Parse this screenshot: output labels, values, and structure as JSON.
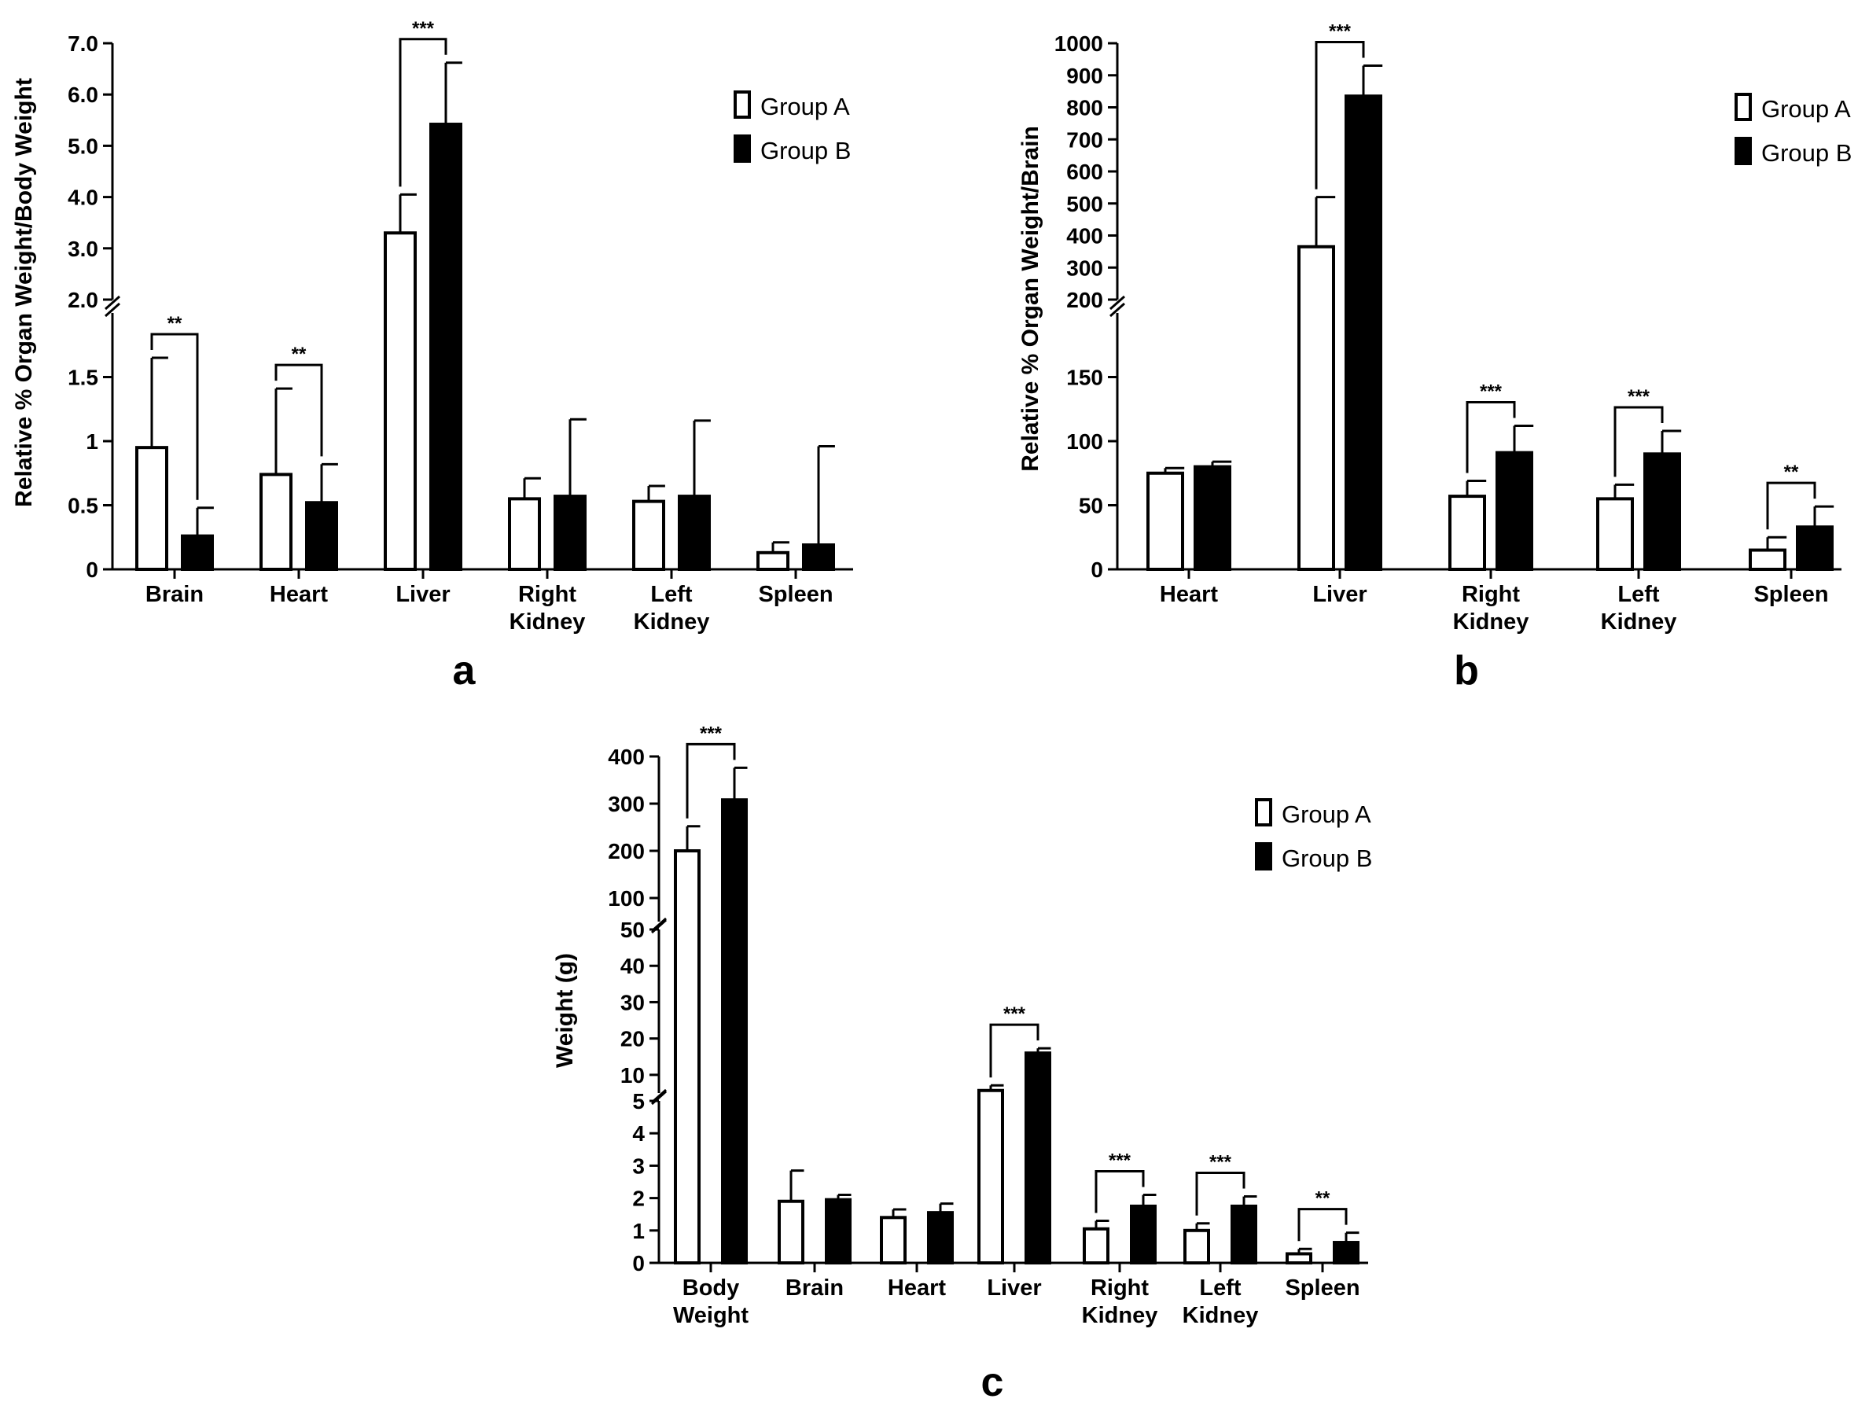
{
  "legend": {
    "group_a": "Group A",
    "group_b": "Group B"
  },
  "colors": {
    "group_a_fill": "#ffffff",
    "group_b_fill": "#000000",
    "stroke": "#000000"
  },
  "chart_data": [
    {
      "panel": "a",
      "type": "bar",
      "ylabel": "Relative % Organ Weight/Body Weight",
      "categories": [
        [
          "Brain"
        ],
        [
          "Heart"
        ],
        [
          "Liver"
        ],
        [
          "Right",
          "Kidney"
        ],
        [
          "Left",
          "Kidney"
        ],
        [
          "Spleen"
        ]
      ],
      "series": [
        {
          "name": "Group A",
          "values": [
            0.95,
            0.74,
            3.3,
            0.55,
            0.53,
            0.13
          ],
          "errors": [
            0.7,
            0.67,
            0.75,
            0.16,
            0.12,
            0.08
          ]
        },
        {
          "name": "Group B",
          "values": [
            0.26,
            0.52,
            5.42,
            0.57,
            0.57,
            0.19
          ],
          "errors": [
            0.22,
            0.3,
            1.2,
            0.6,
            0.59,
            0.77
          ]
        }
      ],
      "y_axis_broken": true,
      "lower_segment": {
        "ylim": [
          0,
          2
        ],
        "ticks": [
          "0",
          "0.5",
          "1",
          "1.5"
        ]
      },
      "upper_segment": {
        "ylim": [
          2,
          7
        ],
        "ticks": [
          "2.0",
          "3.0",
          "4.0",
          "5.0",
          "6.0",
          "7.0"
        ]
      },
      "significance": [
        {
          "category": "Brain",
          "label": "**"
        },
        {
          "category": "Heart",
          "label": "**"
        },
        {
          "category": "Liver",
          "label": "***"
        }
      ],
      "legend_placement": "top-right"
    },
    {
      "panel": "b",
      "type": "bar",
      "ylabel": "Relative % Organ Weight/Brain",
      "categories": [
        [
          "Heart"
        ],
        [
          "Liver"
        ],
        [
          "Right",
          "Kidney"
        ],
        [
          "Left",
          "Kidney"
        ],
        [
          "Spleen"
        ]
      ],
      "series": [
        {
          "name": "Group A",
          "values": [
            75,
            365,
            57,
            55,
            15
          ],
          "errors": [
            4,
            155,
            12,
            11,
            10
          ]
        },
        {
          "name": "Group B",
          "values": [
            80,
            835,
            91,
            90,
            33
          ],
          "errors": [
            4,
            95,
            21,
            18,
            16
          ]
        }
      ],
      "y_axis_broken": true,
      "lower_segment": {
        "ylim": [
          0,
          200
        ],
        "ticks": [
          "0",
          "50",
          "100",
          "150"
        ]
      },
      "upper_segment": {
        "ylim": [
          200,
          1000
        ],
        "ticks": [
          "200",
          "300",
          "400",
          "500",
          "600",
          "700",
          "800",
          "900",
          "1000"
        ]
      },
      "significance": [
        {
          "category": "Liver",
          "label": "***"
        },
        {
          "category": "Right Kidney",
          "label": "***"
        },
        {
          "category": "Left Kidney",
          "label": "***"
        },
        {
          "category": "Spleen",
          "label": "**"
        }
      ],
      "legend_placement": "top-right"
    },
    {
      "panel": "c",
      "type": "bar",
      "ylabel": "Weight (g)",
      "categories": [
        [
          "Body",
          "Weight"
        ],
        [
          "Brain"
        ],
        [
          "Heart"
        ],
        [
          "Liver"
        ],
        [
          "Right",
          "Kidney"
        ],
        [
          "Left",
          "Kidney"
        ],
        [
          "Spleen"
        ]
      ],
      "series": [
        {
          "name": "Group A",
          "values": [
            200,
            1.9,
            1.4,
            5.7,
            1.05,
            1.0,
            0.28
          ],
          "errors": [
            52,
            0.95,
            0.25,
            1.4,
            0.25,
            0.22,
            0.15
          ]
        },
        {
          "name": "Group B",
          "values": [
            308,
            1.95,
            1.55,
            16,
            1.75,
            1.75,
            0.63
          ],
          "errors": [
            68,
            0.15,
            0.28,
            1.3,
            0.35,
            0.3,
            0.3
          ]
        }
      ],
      "y_axis_broken": true,
      "lower_segment": {
        "ylim": [
          0,
          5
        ],
        "ticks": [
          "0",
          "1",
          "2",
          "3",
          "4",
          "5"
        ]
      },
      "middle_segment": {
        "ylim": [
          5,
          50
        ],
        "ticks": [
          "10",
          "20",
          "30",
          "40",
          "50"
        ]
      },
      "upper_segment": {
        "ylim": [
          50,
          400
        ],
        "ticks": [
          "100",
          "200",
          "300",
          "400"
        ]
      },
      "significance": [
        {
          "category": "Body Weight",
          "label": "***"
        },
        {
          "category": "Liver",
          "label": "***"
        },
        {
          "category": "Right Kidney",
          "label": "***"
        },
        {
          "category": "Left Kidney",
          "label": "***"
        },
        {
          "category": "Spleen",
          "label": "**"
        }
      ],
      "legend_placement": "top-right"
    }
  ]
}
